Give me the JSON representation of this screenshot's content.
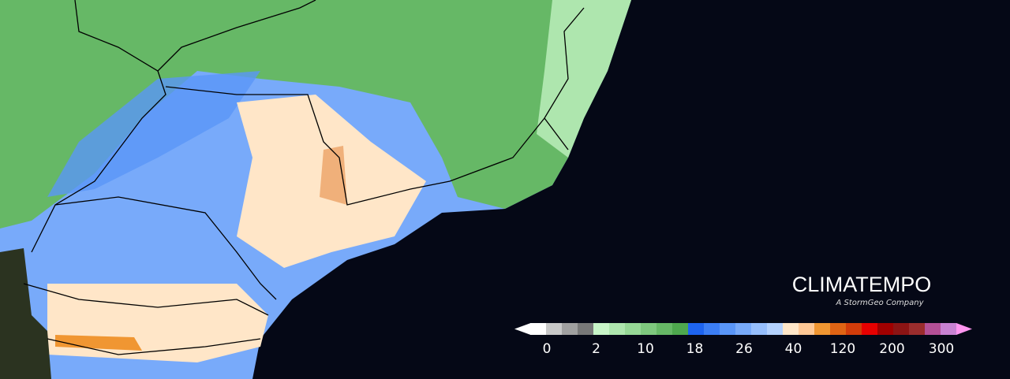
{
  "brand": {
    "name": "CLIMATEMPO",
    "tagline": "A StormGeo Company"
  },
  "legend": {
    "colors": [
      "#ffffff",
      "#ffffff",
      "#c8c8c8",
      "#a0a0a0",
      "#787878",
      "#c8f5c8",
      "#aee6ae",
      "#96d896",
      "#7ec87e",
      "#66b866",
      "#4ea84e",
      "#1e64f0",
      "#3c7ef5",
      "#5a96f8",
      "#78aafa",
      "#96befc",
      "#b4d2fe",
      "#ffe6c8",
      "#ffc896",
      "#f09632",
      "#e06414",
      "#d23c0a",
      "#e60000",
      "#a00000",
      "#8c1414",
      "#9b2d2d",
      "#b45096",
      "#c882d2",
      "#ff96f0"
    ],
    "labels": [
      "0",
      "2",
      "10",
      "18",
      "26",
      "40",
      "120",
      "200",
      "300"
    ]
  }
}
